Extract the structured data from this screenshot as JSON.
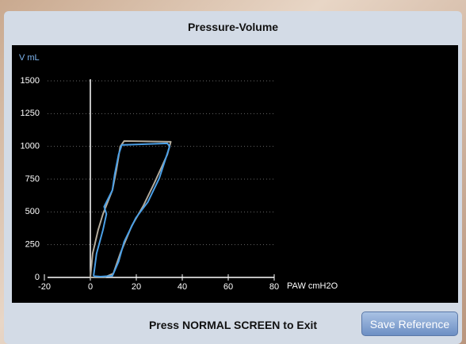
{
  "window": {
    "title": "Pressure-Volume",
    "footer": "Press NORMAL SCREEN to Exit",
    "button": "Save Reference"
  },
  "chart_data": {
    "type": "line",
    "y_label": "V mL",
    "x_label": "PAW cmH2O",
    "xlim": [
      -20,
      80
    ],
    "xticks": [
      -20,
      0,
      20,
      40,
      60,
      80
    ],
    "ylim": [
      0,
      1500
    ],
    "yticks": [
      0,
      250,
      500,
      750,
      1000,
      1250,
      1500
    ],
    "grid": true,
    "series": [
      {
        "color": "#b3ab9c",
        "x": [
          0,
          1,
          3.4,
          5.5,
          9.6,
          11.3,
          13,
          14.7,
          35,
          33.5,
          28,
          23,
          18,
          13,
          10,
          6,
          0
        ],
        "values": [
          0,
          182,
          363,
          484,
          666,
          817,
          998,
          1041,
          1035,
          938,
          726,
          545,
          393,
          182,
          30,
          0,
          0
        ]
      },
      {
        "color": "#4a9fe6",
        "x": [
          1.4,
          2.7,
          5.5,
          7,
          6,
          9.6,
          10.6,
          12.3,
          13.7,
          33.5,
          34.5,
          30,
          25,
          19.8,
          14.7,
          12.3,
          9.6,
          4.4,
          1.4
        ],
        "values": [
          10,
          182,
          363,
          484,
          540,
          666,
          787,
          938,
          1011,
          1023,
          1000,
          757,
          575,
          454,
          272,
          121,
          12,
          6,
          10
        ]
      }
    ]
  }
}
